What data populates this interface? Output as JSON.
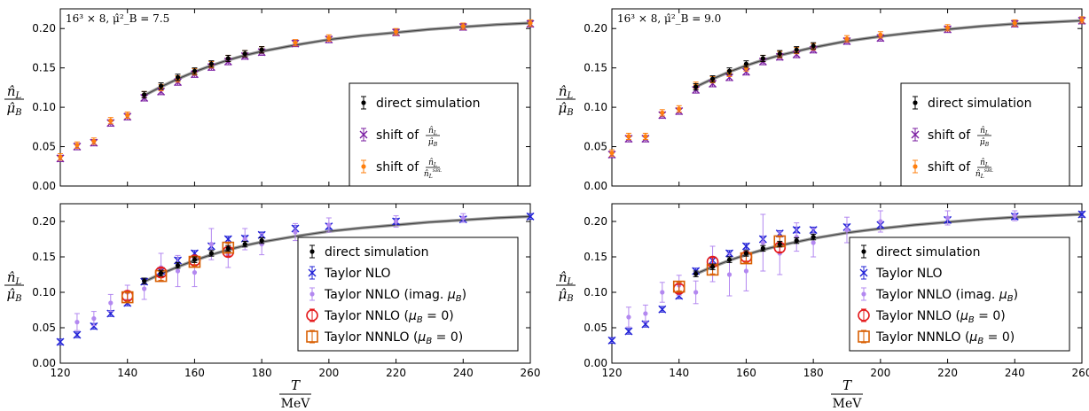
{
  "chart_data": [
    {
      "type": "scatter",
      "annotation": "16³ × 8,  μ̂²_B = 7.5",
      "ylabel": "n̂_L / μ̂_B",
      "xlim": [
        120,
        260
      ],
      "ylim": [
        0,
        0.225
      ],
      "yticks": [
        "0.00",
        "0.05",
        "0.10",
        "0.15",
        "0.20"
      ],
      "legend": "lower-right",
      "series": [
        {
          "name": "direct simulation",
          "color": "#000000",
          "marker": "dot",
          "x": [
            145,
            150,
            155,
            160,
            165,
            170,
            175,
            180
          ],
          "y": [
            0.116,
            0.127,
            0.138,
            0.146,
            0.155,
            0.162,
            0.168,
            0.173
          ]
        },
        {
          "name": "shift of n̂_L/μ̂_B",
          "color": "#7b1fa2",
          "marker": "x",
          "x": [
            120,
            125,
            130,
            135,
            140,
            145,
            150,
            155,
            160,
            165,
            170,
            175,
            180,
            190,
            200,
            220,
            240,
            260
          ],
          "y": [
            0.035,
            0.05,
            0.055,
            0.08,
            0.088,
            0.112,
            0.12,
            0.132,
            0.142,
            0.151,
            0.158,
            0.165,
            0.17,
            0.181,
            0.186,
            0.195,
            0.202,
            0.206
          ]
        },
        {
          "name": "shift of n̂_L/n̂_L^SBL",
          "color": "#ff7f0e",
          "marker": "dot",
          "x": [
            120,
            125,
            130,
            135,
            140,
            145,
            150,
            155,
            160,
            165,
            170,
            175,
            180,
            190,
            200,
            220,
            240,
            260
          ],
          "y": [
            0.037,
            0.052,
            0.057,
            0.083,
            0.09,
            0.116,
            0.125,
            0.136,
            0.145,
            0.154,
            0.162,
            0.168,
            0.173,
            0.182,
            0.188,
            0.196,
            0.203,
            0.207
          ]
        }
      ],
      "fit_curve": {
        "x": [
          145,
          150,
          155,
          160,
          165,
          170,
          175,
          180,
          190,
          200,
          210,
          220,
          230,
          240,
          250,
          260
        ],
        "y": [
          0.115,
          0.126,
          0.136,
          0.145,
          0.153,
          0.16,
          0.166,
          0.171,
          0.179,
          0.186,
          0.191,
          0.195,
          0.199,
          0.202,
          0.205,
          0.207
        ]
      }
    },
    {
      "type": "scatter",
      "ylabel": "n̂_L / μ̂_B",
      "xlabel": "T / MeV",
      "xlim": [
        120,
        260
      ],
      "ylim": [
        0,
        0.225
      ],
      "xticks": [
        "120",
        "140",
        "160",
        "180",
        "200",
        "220",
        "240",
        "260"
      ],
      "yticks": [
        "0.00",
        "0.05",
        "0.10",
        "0.15",
        "0.20"
      ],
      "legend": "lower-right",
      "series": [
        {
          "name": "direct simulation",
          "color": "#000000",
          "marker": "dot",
          "x": [
            145,
            150,
            155,
            160,
            165,
            170,
            175,
            180
          ],
          "y": [
            0.116,
            0.127,
            0.138,
            0.146,
            0.155,
            0.162,
            0.168,
            0.173
          ]
        },
        {
          "name": "Taylor NLO",
          "color": "#1f1fd6",
          "marker": "x",
          "x": [
            120,
            125,
            130,
            135,
            140,
            145,
            150,
            155,
            160,
            165,
            170,
            175,
            180,
            190,
            200,
            220,
            240,
            260
          ],
          "y": [
            0.03,
            0.04,
            0.052,
            0.07,
            0.085,
            0.115,
            0.13,
            0.145,
            0.155,
            0.165,
            0.175,
            0.176,
            0.181,
            0.19,
            0.193,
            0.2,
            0.203,
            0.207
          ]
        },
        {
          "name": "Taylor NNLO (imag. μ_B)",
          "color": "#b388f0",
          "marker": "dot",
          "x": [
            125,
            130,
            135,
            140,
            145,
            150,
            155,
            160,
            165,
            170,
            175,
            180,
            190,
            200,
            220,
            240
          ],
          "y": [
            0.058,
            0.063,
            0.085,
            0.1,
            0.105,
            0.135,
            0.13,
            0.128,
            0.168,
            0.153,
            0.175,
            0.168,
            0.185,
            0.195,
            0.2,
            0.205
          ],
          "err": [
            0.012,
            0.01,
            0.012,
            0.01,
            0.015,
            0.02,
            0.022,
            0.02,
            0.022,
            0.018,
            0.015,
            0.015,
            0.012,
            0.01,
            0.008,
            0.006
          ]
        },
        {
          "name": "Taylor NNLO (μ_B = 0)",
          "color": "#e41a1c",
          "marker": "circle",
          "x": [
            140,
            150,
            160,
            170
          ],
          "y": [
            0.095,
            0.128,
            0.145,
            0.157
          ]
        },
        {
          "name": "Taylor NNNLO (μ_B = 0)",
          "color": "#d95f02",
          "marker": "square",
          "x": [
            140,
            150,
            160,
            170
          ],
          "y": [
            0.093,
            0.123,
            0.143,
            0.163
          ]
        }
      ],
      "fit_curve": {
        "x": [
          145,
          150,
          155,
          160,
          165,
          170,
          175,
          180,
          190,
          200,
          210,
          220,
          230,
          240,
          250,
          260
        ],
        "y": [
          0.115,
          0.126,
          0.136,
          0.145,
          0.153,
          0.16,
          0.166,
          0.171,
          0.179,
          0.186,
          0.191,
          0.195,
          0.199,
          0.202,
          0.205,
          0.207
        ]
      }
    },
    {
      "type": "scatter",
      "annotation": "16³ × 8,  μ̂²_B = 9.0",
      "ylabel": "n̂_L / μ̂_B",
      "xlim": [
        120,
        260
      ],
      "ylim": [
        0,
        0.225
      ],
      "yticks": [
        "0.00",
        "0.05",
        "0.10",
        "0.15",
        "0.20"
      ],
      "legend": "lower-right",
      "series": [
        {
          "name": "direct simulation",
          "color": "#000000",
          "marker": "dot",
          "x": [
            145,
            150,
            155,
            160,
            165,
            170,
            175,
            180
          ],
          "y": [
            0.126,
            0.136,
            0.146,
            0.155,
            0.162,
            0.168,
            0.173,
            0.178
          ]
        },
        {
          "name": "shift of n̂_L/μ̂_B",
          "color": "#7b1fa2",
          "marker": "x",
          "x": [
            120,
            125,
            130,
            135,
            140,
            145,
            150,
            155,
            160,
            165,
            170,
            175,
            180,
            190,
            200,
            220,
            240,
            260
          ],
          "y": [
            0.04,
            0.06,
            0.06,
            0.09,
            0.095,
            0.122,
            0.13,
            0.138,
            0.145,
            0.158,
            0.164,
            0.167,
            0.173,
            0.184,
            0.188,
            0.199,
            0.206,
            0.21
          ]
        },
        {
          "name": "shift of n̂_L/n̂_L^SBL",
          "color": "#ff7f0e",
          "marker": "dot",
          "x": [
            120,
            125,
            130,
            135,
            140,
            145,
            150,
            155,
            160,
            165,
            170,
            175,
            180,
            190,
            200,
            220,
            240,
            260
          ],
          "y": [
            0.042,
            0.063,
            0.063,
            0.093,
            0.098,
            0.128,
            0.135,
            0.143,
            0.15,
            0.162,
            0.167,
            0.172,
            0.177,
            0.187,
            0.192,
            0.201,
            0.207,
            0.211
          ]
        }
      ],
      "fit_curve": {
        "x": [
          145,
          150,
          155,
          160,
          165,
          170,
          175,
          180,
          190,
          200,
          210,
          220,
          230,
          240,
          250,
          260
        ],
        "y": [
          0.126,
          0.136,
          0.145,
          0.153,
          0.16,
          0.166,
          0.171,
          0.176,
          0.184,
          0.19,
          0.195,
          0.199,
          0.203,
          0.206,
          0.208,
          0.21
        ]
      }
    },
    {
      "type": "scatter",
      "ylabel": "n̂_L / μ̂_B",
      "xlabel": "T / MeV",
      "xlim": [
        120,
        260
      ],
      "ylim": [
        0,
        0.225
      ],
      "xticks": [
        "120",
        "140",
        "160",
        "180",
        "200",
        "220",
        "240",
        "260"
      ],
      "yticks": [
        "0.00",
        "0.05",
        "0.10",
        "0.15",
        "0.20"
      ],
      "legend": "lower-right",
      "series": [
        {
          "name": "direct simulation",
          "color": "#000000",
          "marker": "dot",
          "x": [
            145,
            150,
            155,
            160,
            165,
            170,
            175,
            180
          ],
          "y": [
            0.126,
            0.136,
            0.146,
            0.155,
            0.162,
            0.168,
            0.173,
            0.178
          ]
        },
        {
          "name": "Taylor NLO",
          "color": "#1f1fd6",
          "marker": "x",
          "x": [
            120,
            125,
            130,
            135,
            140,
            145,
            150,
            155,
            160,
            165,
            170,
            175,
            180,
            190,
            200,
            220,
            240,
            260
          ],
          "y": [
            0.032,
            0.045,
            0.055,
            0.076,
            0.095,
            0.13,
            0.145,
            0.155,
            0.165,
            0.175,
            0.183,
            0.188,
            0.188,
            0.192,
            0.195,
            0.202,
            0.207,
            0.21
          ]
        },
        {
          "name": "Taylor NNLO (imag. μ_B)",
          "color": "#b388f0",
          "marker": "dot",
          "x": [
            125,
            130,
            135,
            140,
            145,
            150,
            155,
            160,
            165,
            170,
            175,
            180,
            190,
            200,
            220,
            240
          ],
          "y": [
            0.065,
            0.07,
            0.1,
            0.11,
            0.1,
            0.14,
            0.125,
            0.13,
            0.17,
            0.155,
            0.178,
            0.17,
            0.188,
            0.2,
            0.205,
            0.208
          ],
          "err": [
            0.014,
            0.012,
            0.014,
            0.014,
            0.016,
            0.025,
            0.03,
            0.028,
            0.04,
            0.03,
            0.02,
            0.02,
            0.018,
            0.015,
            0.01,
            0.007
          ]
        },
        {
          "name": "Taylor NNLO (μ_B = 0)",
          "color": "#e41a1c",
          "marker": "circle",
          "x": [
            140,
            150,
            160,
            170
          ],
          "y": [
            0.105,
            0.143,
            0.15,
            0.163
          ]
        },
        {
          "name": "Taylor NNNLO (μ_B = 0)",
          "color": "#d95f02",
          "marker": "square",
          "x": [
            140,
            150,
            160,
            170
          ],
          "y": [
            0.108,
            0.132,
            0.148,
            0.172
          ]
        }
      ],
      "fit_curve": {
        "x": [
          145,
          150,
          155,
          160,
          165,
          170,
          175,
          180,
          190,
          200,
          210,
          220,
          230,
          240,
          250,
          260
        ],
        "y": [
          0.126,
          0.136,
          0.145,
          0.153,
          0.16,
          0.166,
          0.171,
          0.176,
          0.184,
          0.19,
          0.195,
          0.199,
          0.203,
          0.206,
          0.208,
          0.21
        ]
      }
    }
  ]
}
